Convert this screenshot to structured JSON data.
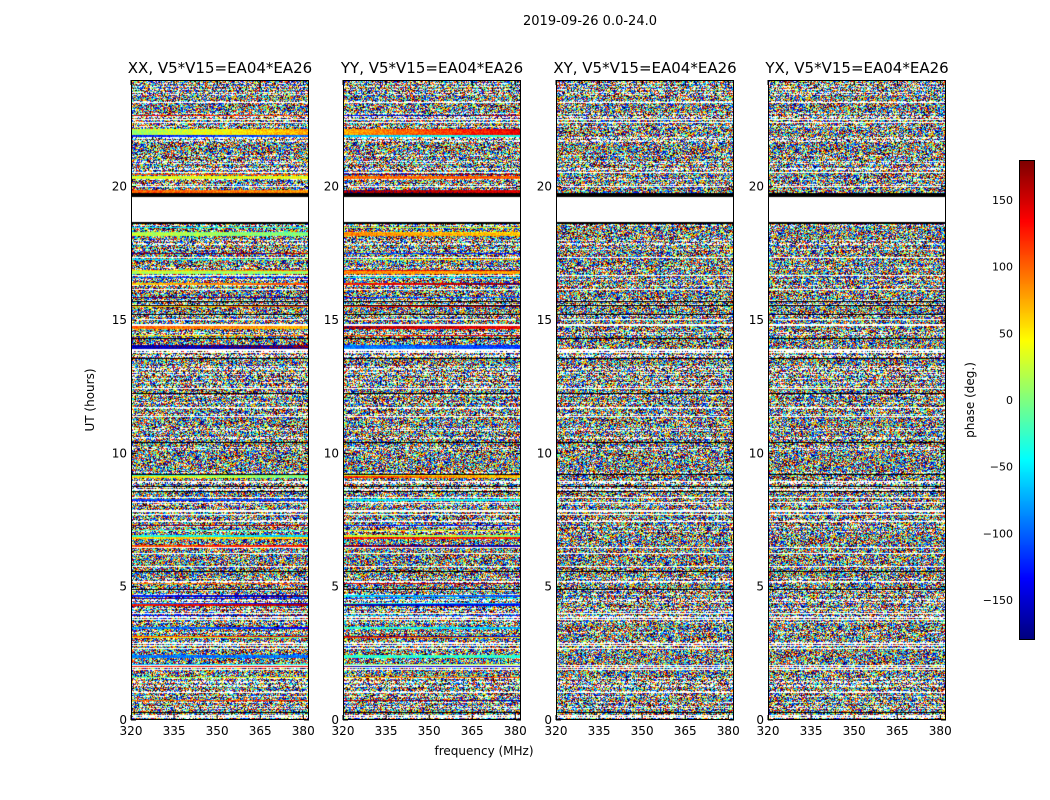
{
  "figure": {
    "suptitle": "2019-09-26 0.0-24.0",
    "ylabel": "UT (hours)",
    "xlabel": "frequency (MHz)"
  },
  "chart_data": {
    "type": "heatmap",
    "panels": [
      {
        "title": "XX, V5*V15=EA04*EA26",
        "polarization": "XX"
      },
      {
        "title": "YY, V5*V15=EA04*EA26",
        "polarization": "YY"
      },
      {
        "title": "XY, V5*V15=EA04*EA26",
        "polarization": "XY"
      },
      {
        "title": "YX, V5*V15=EA04*EA26",
        "polarization": "YX"
      }
    ],
    "x_ticks": [
      "320",
      "335",
      "350",
      "365",
      "380"
    ],
    "x_tick_values": [
      320,
      335,
      350,
      365,
      380
    ],
    "xlim": [
      320,
      382
    ],
    "y_ticks": [
      "0",
      "5",
      "10",
      "15",
      "20"
    ],
    "y_tick_values": [
      0,
      5,
      10,
      15,
      20
    ],
    "ylim": [
      0,
      24
    ],
    "colorbar": {
      "label": "phase (deg.)",
      "ticks": [
        "150",
        "100",
        "50",
        "0",
        "−50",
        "−100",
        "−150"
      ],
      "tick_values": [
        150,
        100,
        50,
        0,
        -50,
        -100,
        -150
      ],
      "range": [
        -180,
        180
      ],
      "colormap": "jet"
    },
    "data_gap_hours": [
      19.8,
      18.7
    ],
    "colors": {
      "axes": "#000000",
      "background": "#ffffff",
      "flagged": "#ffffff"
    }
  }
}
